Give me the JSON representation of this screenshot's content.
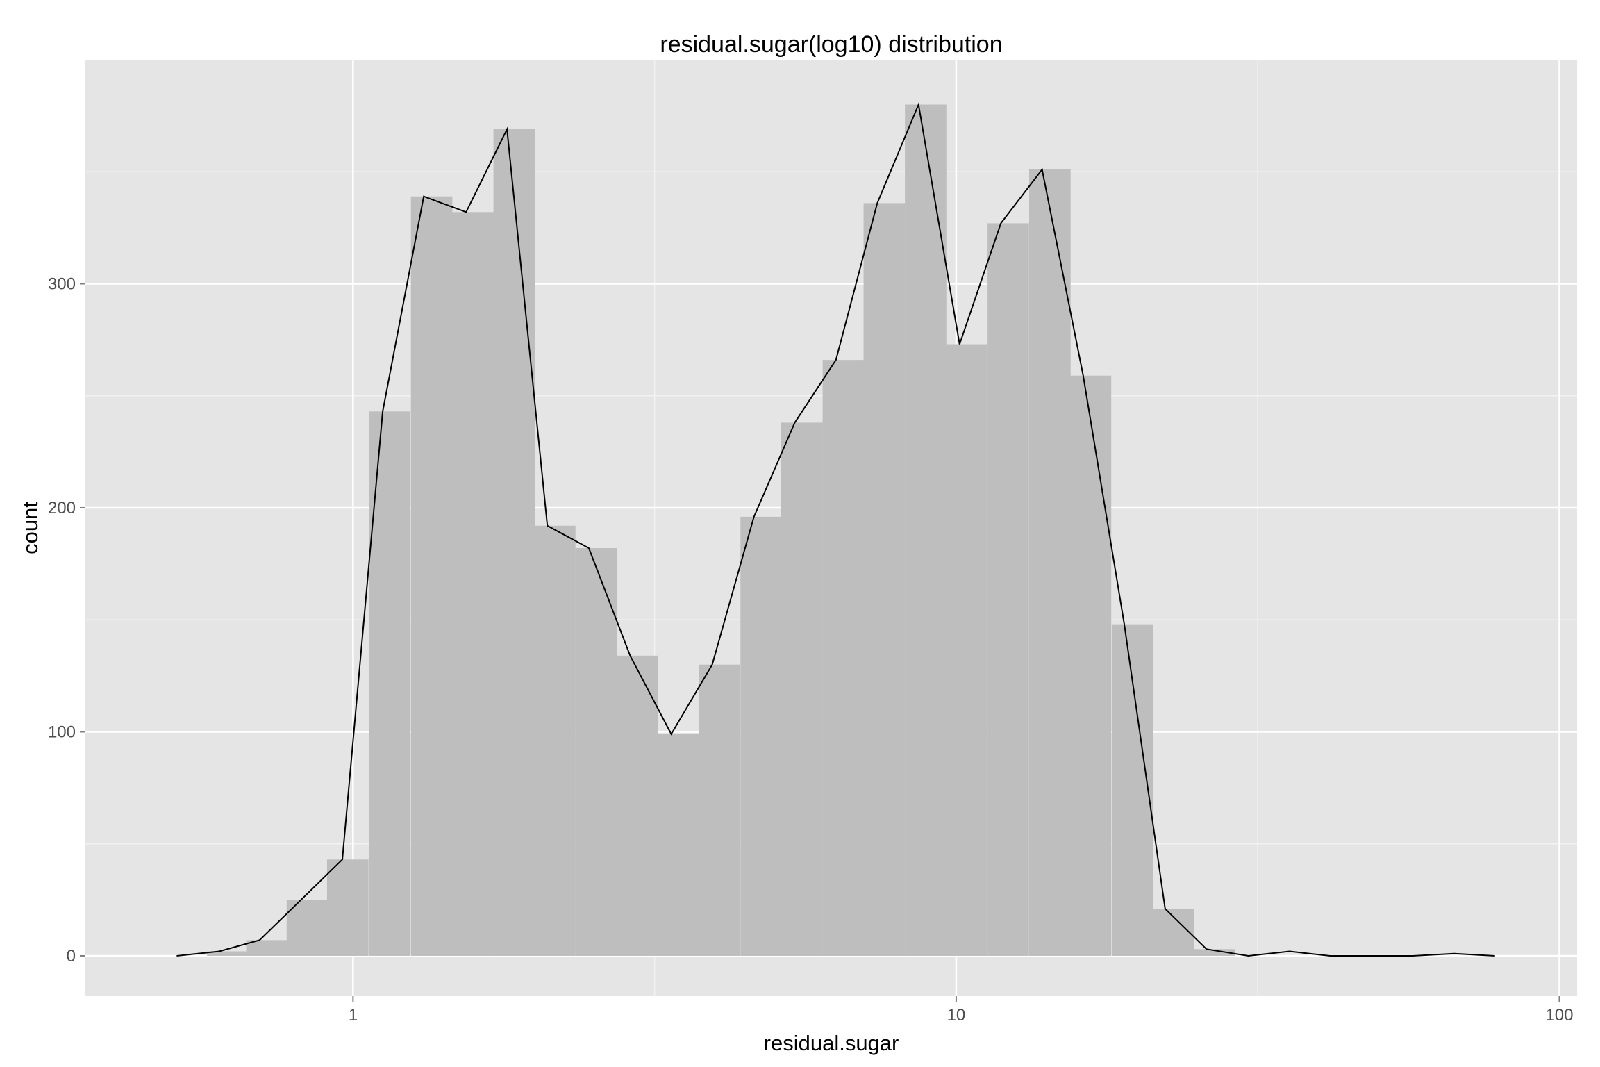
{
  "chart_data": {
    "type": "bar",
    "title": "residual.sugar(log10) distribution",
    "xlabel": "residual.sugar",
    "ylabel": "count",
    "x_scale": "log10",
    "xlim": [
      0.36,
      107
    ],
    "ylim": [
      -18,
      400
    ],
    "x_ticks": [
      1,
      10,
      100
    ],
    "x_tick_labels": [
      "1",
      "10",
      "100"
    ],
    "y_ticks": [
      0,
      100,
      200,
      300
    ],
    "y_tick_labels": [
      "0",
      "100",
      "200",
      "300"
    ],
    "grid": true,
    "bar_log_width": 0.0687,
    "bins": [
      {
        "x": 0.62,
        "count": 2
      },
      {
        "x": 0.72,
        "count": 7
      },
      {
        "x": 0.84,
        "count": 25
      },
      {
        "x": 0.98,
        "count": 43
      },
      {
        "x": 1.15,
        "count": 243
      },
      {
        "x": 1.35,
        "count": 339
      },
      {
        "x": 1.58,
        "count": 332
      },
      {
        "x": 1.85,
        "count": 369
      },
      {
        "x": 2.16,
        "count": 192
      },
      {
        "x": 2.53,
        "count": 182
      },
      {
        "x": 2.96,
        "count": 134
      },
      {
        "x": 3.46,
        "count": 99
      },
      {
        "x": 4.05,
        "count": 130
      },
      {
        "x": 4.75,
        "count": 196
      },
      {
        "x": 5.55,
        "count": 238
      },
      {
        "x": 6.5,
        "count": 266
      },
      {
        "x": 7.6,
        "count": 336
      },
      {
        "x": 8.9,
        "count": 380
      },
      {
        "x": 10.4,
        "count": 273
      },
      {
        "x": 12.2,
        "count": 327
      },
      {
        "x": 14.3,
        "count": 351
      },
      {
        "x": 16.7,
        "count": 259
      },
      {
        "x": 19.6,
        "count": 148
      },
      {
        "x": 22.9,
        "count": 21
      },
      {
        "x": 26.8,
        "count": 3
      }
    ],
    "line": {
      "x": [
        0.51,
        0.6,
        0.7,
        0.82,
        0.96,
        1.12,
        1.31,
        1.54,
        1.8,
        2.1,
        2.46,
        2.88,
        3.37,
        3.94,
        4.62,
        5.4,
        6.32,
        7.4,
        8.66,
        10.13,
        11.86,
        13.88,
        16.24,
        19.0,
        22.2,
        26.0,
        30.5,
        35.7,
        41.7,
        48.8,
        57.1,
        66.9,
        78.2
      ],
      "y": [
        0,
        2,
        7,
        25,
        43,
        243,
        339,
        332,
        369,
        192,
        182,
        134,
        99,
        130,
        196,
        238,
        266,
        336,
        380,
        273,
        327,
        351,
        259,
        148,
        21,
        3,
        0,
        2,
        0,
        0,
        0,
        1,
        0
      ]
    },
    "colors": {
      "panel": "#e5e5e5",
      "grid_major": "#ffffff",
      "grid_minor": "#f2f2f2",
      "bar": "#bebebe",
      "line": "#000000",
      "tick_label": "#4d4d4d"
    }
  }
}
